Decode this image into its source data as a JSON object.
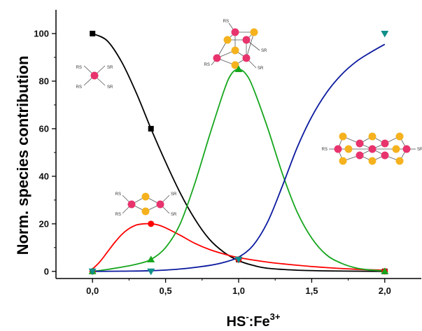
{
  "chart_data": {
    "type": "line",
    "title": "",
    "xlabel": {
      "base": "HS",
      "sup1": "-",
      "mid": ":Fe",
      "sup2": "3+"
    },
    "ylabel": "Norm. species contribution",
    "xlim": [
      -0.25,
      2.25
    ],
    "ylim": [
      -3,
      110
    ],
    "x_ticks": [
      0.0,
      0.5,
      1.0,
      1.5,
      2.0
    ],
    "x_tick_labels": [
      "0,0",
      "0,5",
      "1,0",
      "1,5",
      "2,0"
    ],
    "y_ticks": [
      0,
      20,
      40,
      60,
      80,
      100
    ],
    "y_tick_labels": [
      "0",
      "20",
      "40",
      "60",
      "80",
      "100"
    ],
    "series": [
      {
        "color": "#000000",
        "marker": "square",
        "points": [
          [
            0,
            100
          ],
          [
            0.4,
            60
          ],
          [
            1,
            5
          ],
          [
            2,
            0
          ]
        ],
        "curve": [
          [
            0,
            100
          ],
          [
            0.1,
            97
          ],
          [
            0.2,
            88
          ],
          [
            0.3,
            75
          ],
          [
            0.4,
            60
          ],
          [
            0.5,
            46
          ],
          [
            0.6,
            33
          ],
          [
            0.7,
            22
          ],
          [
            0.8,
            13.5
          ],
          [
            0.9,
            8
          ],
          [
            1.0,
            4.5
          ],
          [
            1.1,
            2.5
          ],
          [
            1.2,
            1.3
          ],
          [
            1.4,
            0.5
          ],
          [
            1.6,
            0.2
          ],
          [
            2.0,
            0
          ]
        ]
      },
      {
        "color": "#ff0000",
        "marker": "circle",
        "points": [
          [
            0,
            0
          ],
          [
            0.4,
            20
          ],
          [
            1,
            5
          ],
          [
            2,
            0
          ]
        ],
        "curve": [
          [
            0,
            1
          ],
          [
            0.05,
            4
          ],
          [
            0.1,
            8
          ],
          [
            0.15,
            12
          ],
          [
            0.2,
            15.5
          ],
          [
            0.25,
            18
          ],
          [
            0.3,
            19.5
          ],
          [
            0.35,
            20
          ],
          [
            0.4,
            20
          ],
          [
            0.45,
            19.5
          ],
          [
            0.5,
            18.3
          ],
          [
            0.6,
            15.2
          ],
          [
            0.7,
            11.8
          ],
          [
            0.8,
            9.2
          ],
          [
            0.9,
            7.3
          ],
          [
            1.0,
            5.8
          ],
          [
            1.2,
            3.9
          ],
          [
            1.4,
            2.6
          ],
          [
            1.6,
            1.6
          ],
          [
            1.8,
            0.9
          ],
          [
            2.0,
            0.5
          ]
        ]
      },
      {
        "color": "#16a61d",
        "marker": "triangle-up",
        "points": [
          [
            0,
            0
          ],
          [
            0.4,
            5
          ],
          [
            1,
            85
          ],
          [
            2,
            0
          ]
        ],
        "curve": [
          [
            0,
            0
          ],
          [
            0.1,
            0.8
          ],
          [
            0.2,
            1.8
          ],
          [
            0.3,
            3
          ],
          [
            0.4,
            5
          ],
          [
            0.5,
            10
          ],
          [
            0.6,
            20
          ],
          [
            0.7,
            37
          ],
          [
            0.8,
            57
          ],
          [
            0.9,
            76
          ],
          [
            0.95,
            83
          ],
          [
            1.0,
            85
          ],
          [
            1.05,
            83
          ],
          [
            1.1,
            77
          ],
          [
            1.2,
            60
          ],
          [
            1.3,
            41
          ],
          [
            1.4,
            25
          ],
          [
            1.5,
            14
          ],
          [
            1.6,
            7
          ],
          [
            1.7,
            3.5
          ],
          [
            1.8,
            1.5
          ],
          [
            1.9,
            0.6
          ],
          [
            2.0,
            0.2
          ]
        ]
      },
      {
        "color": "#0b1a9e",
        "marker": "triangle-down",
        "marker_color": "#0f8f8a",
        "points": [
          [
            0,
            0
          ],
          [
            0.4,
            0
          ],
          [
            1,
            5
          ],
          [
            2,
            100
          ]
        ],
        "curve": [
          [
            0,
            0
          ],
          [
            0.2,
            0.1
          ],
          [
            0.4,
            0.3
          ],
          [
            0.6,
            1
          ],
          [
            0.8,
            2.5
          ],
          [
            0.9,
            3.8
          ],
          [
            1.0,
            6
          ],
          [
            1.1,
            11
          ],
          [
            1.2,
            21
          ],
          [
            1.3,
            36
          ],
          [
            1.4,
            52
          ],
          [
            1.5,
            65
          ],
          [
            1.6,
            75
          ],
          [
            1.7,
            82.5
          ],
          [
            1.8,
            88
          ],
          [
            1.9,
            92
          ],
          [
            2.0,
            95.5
          ]
        ]
      }
    ],
    "molecule_labels": {
      "rs": "RS",
      "sr": "SR"
    },
    "colors": {
      "iron": "#e8336d",
      "sulfur": "#f5b21e",
      "bond": "#555555"
    }
  }
}
